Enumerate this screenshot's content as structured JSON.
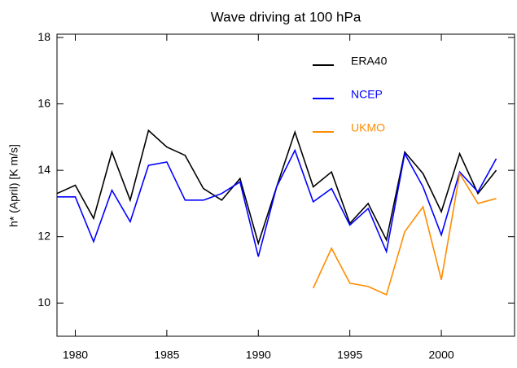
{
  "chart_data": {
    "type": "line",
    "title": "Wave driving at 100 hPa",
    "y_label": "h* (April) [K m/s]",
    "x": [
      1979,
      1980,
      1981,
      1982,
      1983,
      1984,
      1985,
      1986,
      1987,
      1988,
      1989,
      1990,
      1991,
      1992,
      1993,
      1994,
      1995,
      1996,
      1997,
      1998,
      1999,
      2000,
      2001,
      2002,
      2003
    ],
    "series": [
      {
        "name": "ERA40",
        "color": "#000000",
        "values": [
          13.3,
          13.55,
          12.55,
          14.55,
          13.1,
          15.2,
          14.7,
          14.45,
          13.45,
          13.1,
          13.75,
          11.8,
          13.5,
          15.15,
          13.5,
          13.95,
          12.4,
          13.0,
          11.9,
          14.55,
          13.9,
          12.75,
          14.5,
          13.3,
          14.0
        ]
      },
      {
        "name": "NCEP",
        "color": "#0000ff",
        "values": [
          13.2,
          13.2,
          11.85,
          13.4,
          12.45,
          14.15,
          14.25,
          13.1,
          13.1,
          13.3,
          13.65,
          11.4,
          13.5,
          14.6,
          13.05,
          13.45,
          12.35,
          12.85,
          11.55,
          14.5,
          13.5,
          12.05,
          13.95,
          13.35,
          14.35
        ]
      },
      {
        "name": "UKMO",
        "color": "#ff8c00",
        "values": [
          null,
          null,
          null,
          null,
          null,
          null,
          null,
          null,
          null,
          null,
          null,
          null,
          null,
          null,
          10.45,
          11.65,
          10.6,
          10.5,
          10.25,
          12.15,
          12.9,
          10.7,
          13.9,
          13.0,
          13.15
        ]
      }
    ],
    "xlim": [
      1979,
      2004
    ],
    "xticks": [
      1980,
      1985,
      1990,
      1995,
      2000
    ],
    "ylim": [
      9,
      18.1
    ],
    "yticks": [
      10,
      12,
      14,
      16,
      18
    ],
    "legend": "upper right"
  }
}
